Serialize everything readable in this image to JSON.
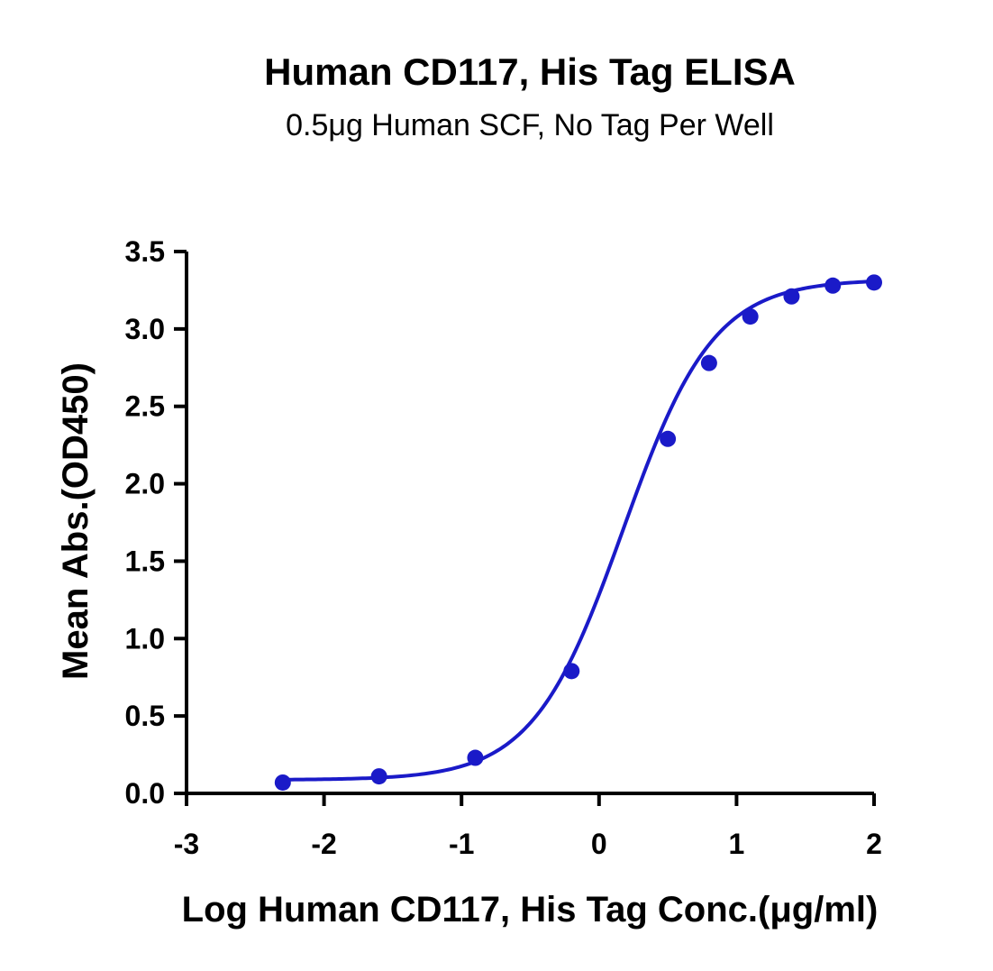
{
  "chart_data": {
    "type": "scatter",
    "title": "Human CD117, His Tag ELISA",
    "subtitle": "0.5μg Human SCF, No Tag Per Well",
    "xlabel": "Log Human CD117, His Tag Conc.(μg/ml)",
    "ylabel": "Mean Abs.(OD450)",
    "xlim": [
      -3,
      2
    ],
    "ylim": [
      0,
      3.5
    ],
    "xticks": [
      "-3",
      "-2",
      "-1",
      "0",
      "1",
      "2"
    ],
    "yticks": [
      "0.0",
      "0.5",
      "1.0",
      "1.5",
      "2.0",
      "2.5",
      "3.0",
      "3.5"
    ],
    "grid": false,
    "series": [
      {
        "color": "#1a1ac8",
        "x": [
          -2.3,
          -1.6,
          -0.9,
          -0.2,
          0.5,
          0.8,
          1.1,
          1.4,
          1.7,
          2.0
        ],
        "y": [
          0.07,
          0.11,
          0.23,
          0.79,
          2.29,
          2.78,
          3.08,
          3.21,
          3.28,
          3.3
        ]
      }
    ],
    "fit_curve": {
      "type": "4PL",
      "bottom": 0.087,
      "top": 3.32,
      "log_ec50": 0.175,
      "hill_slope": 1.32,
      "color": "#1a1ac8"
    }
  }
}
